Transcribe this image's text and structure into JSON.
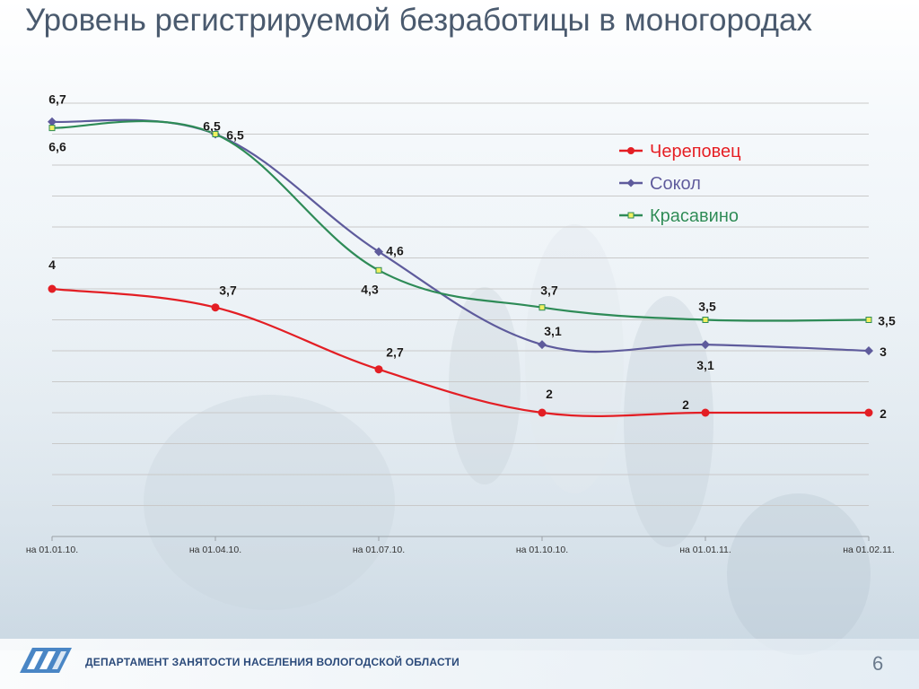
{
  "slide": {
    "title": "Уровень регистрируемой безработицы в моногородах",
    "department": "ДЕПАРТАМЕНТ ЗАНЯТОСТИ НАСЕЛЕНИЯ ВОЛОГОДСКОЙ ОБЛАСТИ",
    "page_number": "6"
  },
  "chart_data": {
    "type": "line",
    "title": "",
    "xlabel": "",
    "ylabel": "",
    "categories": [
      "на 01.01.10.",
      "на 01.04.10.",
      "на 01.07.10.",
      "на 01.10.10.",
      "на 01.01.11.",
      "на 01.02.11."
    ],
    "ylim": [
      0,
      7
    ],
    "grid": true,
    "legend_position": "top-right",
    "series": [
      {
        "name": "Череповец",
        "color": "#e31e24",
        "values": [
          4,
          3.7,
          2.7,
          2,
          2,
          2
        ],
        "labels": [
          "4",
          "3,7",
          "2,7",
          "2",
          "2",
          "2"
        ]
      },
      {
        "name": "Сокол",
        "color": "#5e5b9c",
        "values": [
          6.7,
          6.5,
          4.6,
          3.1,
          3.1,
          3
        ],
        "labels": [
          "6,7",
          "6,5",
          "4,6",
          "3,1",
          "3,1",
          "3"
        ]
      },
      {
        "name": "Красавино",
        "color": "#2e8b57",
        "values": [
          6.6,
          6.5,
          4.3,
          3.7,
          3.5,
          3.5
        ],
        "labels": [
          "6,6",
          "6,5",
          "4,3",
          "3,7",
          "3,5",
          "3,5"
        ]
      }
    ]
  }
}
